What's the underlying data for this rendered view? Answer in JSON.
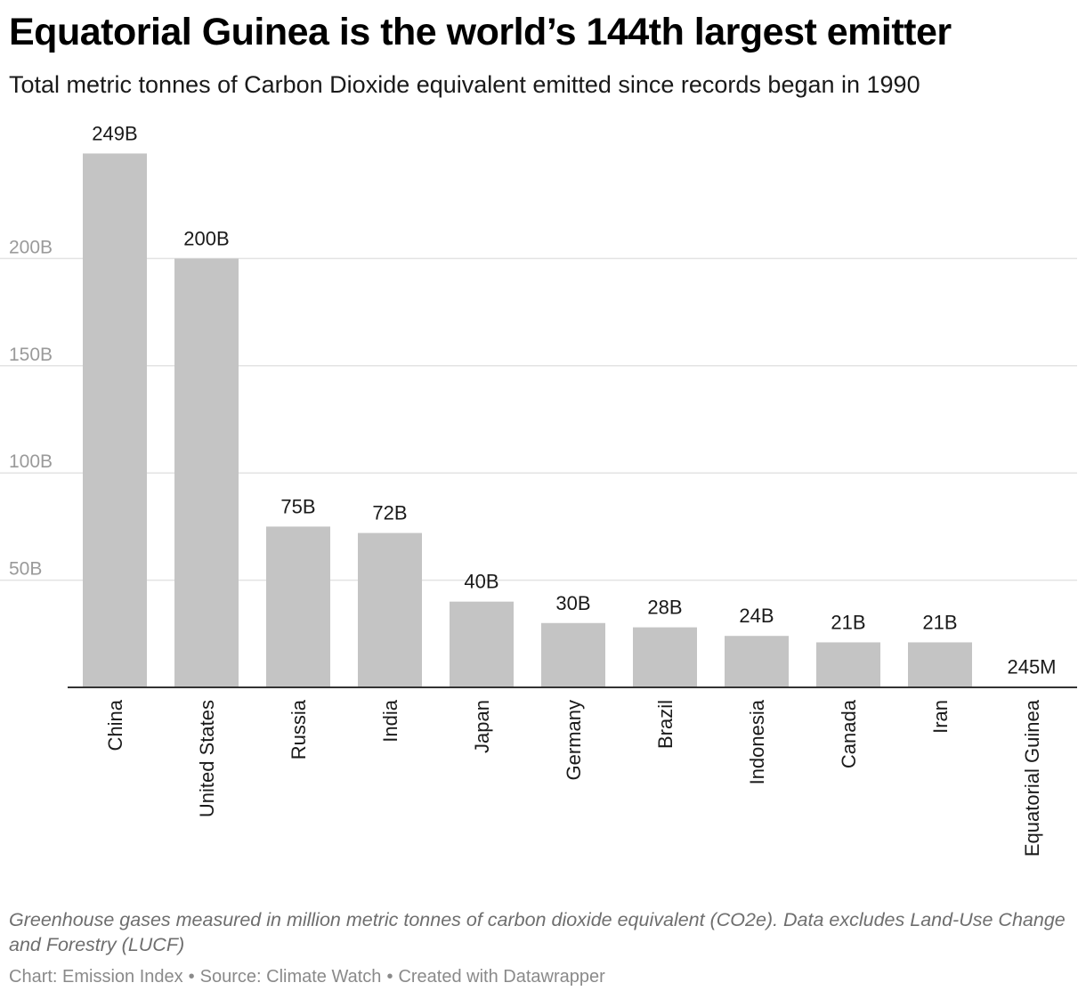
{
  "header": {
    "title": "Equatorial Guinea is the world’s 144th largest emitter",
    "subtitle": "Total metric tonnes of Carbon Dioxide equivalent emitted since records began in 1990"
  },
  "footer": {
    "notes": "Greenhouse gases measured in million metric tonnes of carbon dioxide equivalent (CO2e). Data excludes Land-Use Change and Forestry (LUCF)",
    "credit_chart": "Chart: Emission Index",
    "credit_source": "Source: Climate Watch",
    "credit_tool": "Created with Datawrapper",
    "separator": "•"
  },
  "colors": {
    "bar": "#c4c4c4",
    "gridline": "#e3e3e3",
    "baseline": "#333333",
    "tick_label": "#9a9a9a",
    "value_label": "#1a1a1a",
    "category_label": "#1a1a1a"
  },
  "chart_data": {
    "type": "bar",
    "title": "Equatorial Guinea is the world’s 144th largest emitter",
    "subtitle": "Total metric tonnes of Carbon Dioxide equivalent emitted since records began in 1990",
    "xlabel": "",
    "ylabel": "",
    "ylim": [
      0,
      250
    ],
    "grid": true,
    "y_ticks": [
      {
        "value": 50,
        "label": "50B"
      },
      {
        "value": 100,
        "label": "100B"
      },
      {
        "value": 150,
        "label": "150B"
      },
      {
        "value": 200,
        "label": "200B"
      }
    ],
    "categories": [
      "China",
      "United States",
      "Russia",
      "India",
      "Japan",
      "Germany",
      "Brazil",
      "Indonesia",
      "Canada",
      "Iran",
      "Equatorial Guinea"
    ],
    "values": [
      249,
      200,
      75,
      72,
      40,
      30,
      28,
      24,
      21,
      21,
      0.245
    ],
    "value_labels": [
      "249B",
      "200B",
      "75B",
      "72B",
      "40B",
      "30B",
      "28B",
      "24B",
      "21B",
      "21B",
      "245M"
    ],
    "unit": "billion metric tonnes CO2e"
  }
}
